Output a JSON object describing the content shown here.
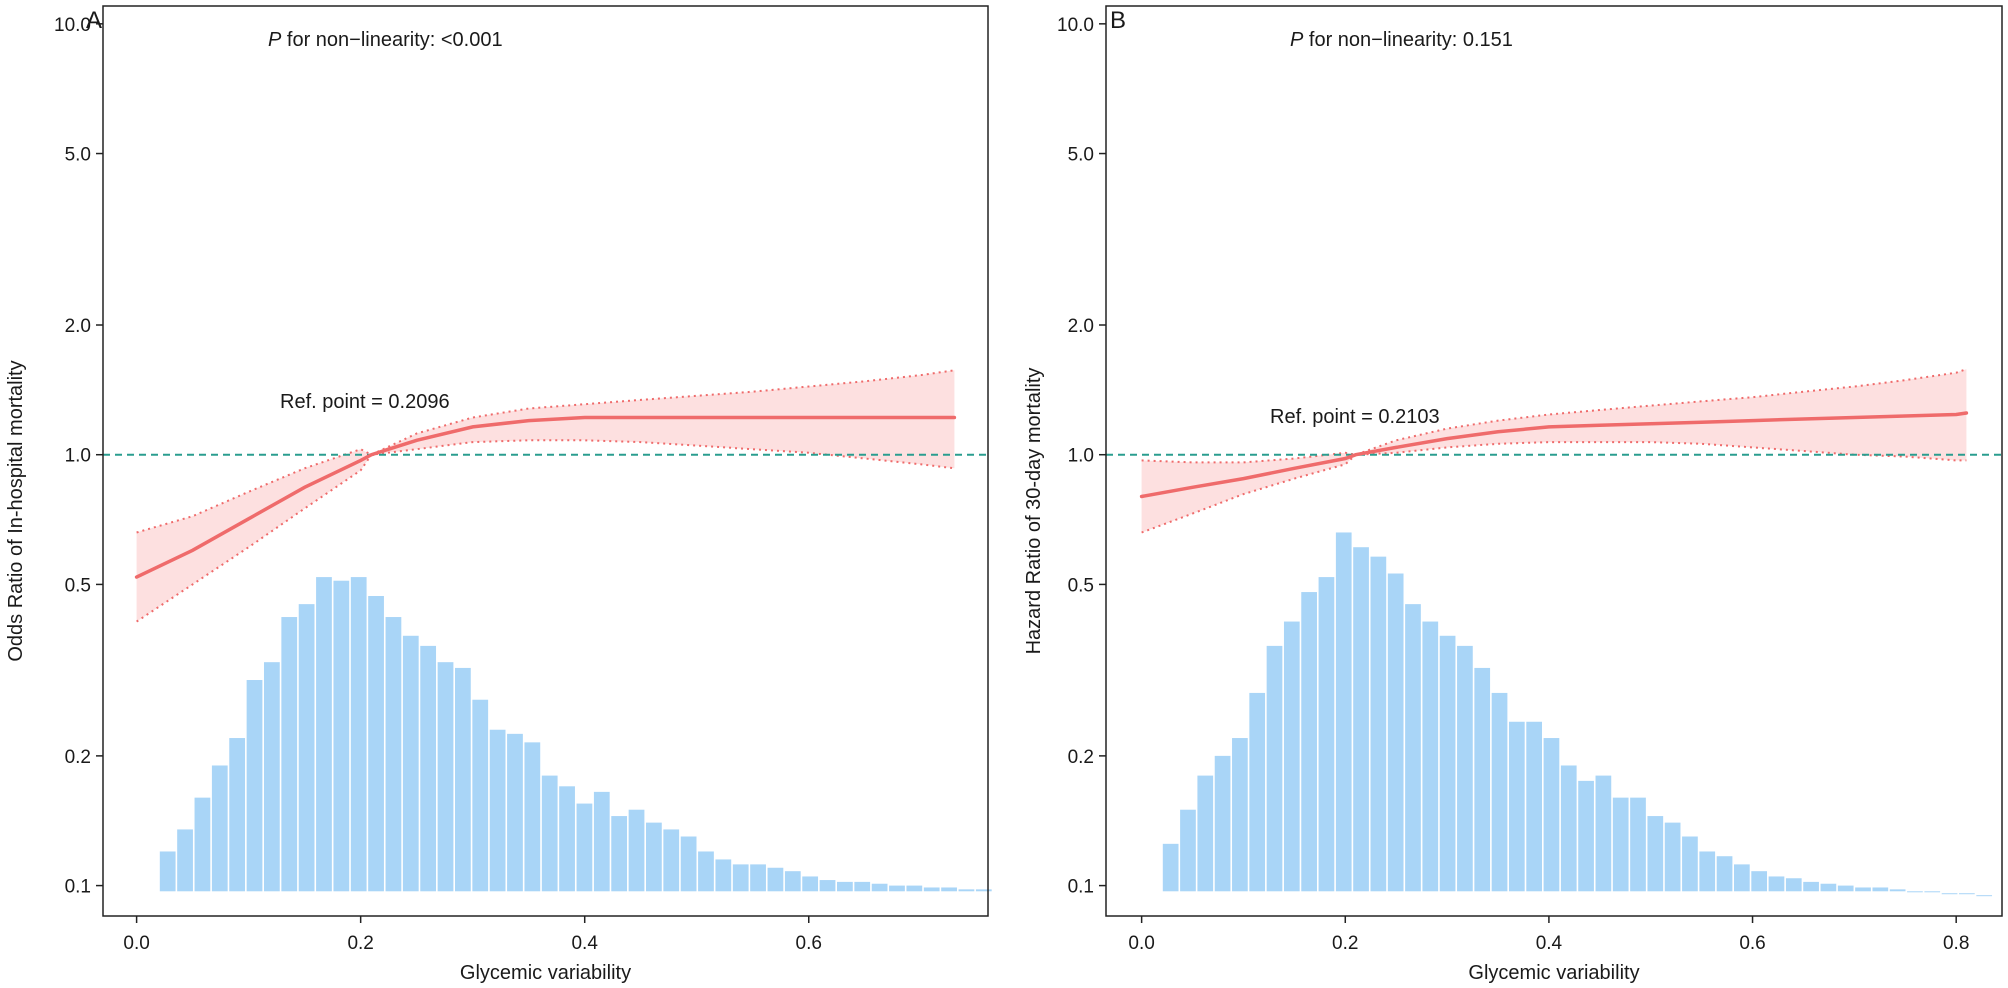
{
  "chart_data": [
    {
      "panel": "A",
      "type": "line",
      "x_label": "Glycemic variability",
      "y_label": "Odds Ratio of In-hospital mortality",
      "y_scale": "log",
      "ylim": [
        0.085,
        11
      ],
      "xlim": [
        -0.03,
        0.76
      ],
      "x_ticks": [
        "0.0",
        "0.2",
        "0.4",
        "0.6"
      ],
      "x_tick_values": [
        0.0,
        0.2,
        0.4,
        0.6
      ],
      "y_ticks": [
        "0.1",
        "0.2",
        "0.5",
        "1.0",
        "2.0",
        "5.0",
        "10.0"
      ],
      "y_tick_values": [
        0.1,
        0.2,
        0.5,
        1.0,
        2.0,
        5.0,
        10.0
      ],
      "nonlinearity_p_symbol": "P",
      "nonlinearity_text": " for non−linearity: <0.001",
      "ref_text": "Ref. point = 0.2096",
      "ref_value": 0.2096,
      "reference_line_y": 1.0,
      "colors": {
        "line": "#ef6b6b",
        "ci_fill": "#fde0e0",
        "hist": "#a9d5f7",
        "refline": "#2a9d8f"
      },
      "curve": {
        "x": [
          0.0,
          0.05,
          0.1,
          0.15,
          0.2,
          0.2096,
          0.25,
          0.3,
          0.35,
          0.4,
          0.45,
          0.5,
          0.55,
          0.6,
          0.65,
          0.7,
          0.73
        ],
        "y": [
          0.52,
          0.6,
          0.71,
          0.84,
          0.97,
          1.0,
          1.08,
          1.16,
          1.2,
          1.22,
          1.22,
          1.22,
          1.22,
          1.22,
          1.22,
          1.22,
          1.22
        ],
        "lo": [
          0.41,
          0.5,
          0.61,
          0.75,
          0.92,
          1.0,
          1.03,
          1.07,
          1.08,
          1.08,
          1.07,
          1.05,
          1.03,
          1.01,
          0.98,
          0.95,
          0.93
        ],
        "hi": [
          0.66,
          0.72,
          0.82,
          0.93,
          1.03,
          1.0,
          1.12,
          1.22,
          1.28,
          1.31,
          1.34,
          1.37,
          1.4,
          1.44,
          1.48,
          1.53,
          1.57
        ]
      },
      "histogram": {
        "x_start": 0.02,
        "bin_width": 0.0155,
        "heights": [
          0.12,
          0.135,
          0.16,
          0.19,
          0.22,
          0.3,
          0.33,
          0.42,
          0.45,
          0.52,
          0.51,
          0.52,
          0.47,
          0.42,
          0.38,
          0.36,
          0.33,
          0.32,
          0.27,
          0.23,
          0.225,
          0.215,
          0.18,
          0.17,
          0.155,
          0.165,
          0.145,
          0.15,
          0.14,
          0.135,
          0.13,
          0.12,
          0.115,
          0.112,
          0.112,
          0.11,
          0.108,
          0.105,
          0.103,
          0.102,
          0.102,
          0.101,
          0.1,
          0.1,
          0.099,
          0.099,
          0.098,
          0.098
        ]
      }
    },
    {
      "panel": "B",
      "type": "line",
      "x_label": "Glycemic variability",
      "y_label": "Hazard Ratio of 30-day mortality",
      "y_scale": "log",
      "ylim": [
        0.085,
        11
      ],
      "xlim": [
        -0.035,
        0.845
      ],
      "x_ticks": [
        "0.0",
        "0.2",
        "0.4",
        "0.6",
        "0.8"
      ],
      "x_tick_values": [
        0.0,
        0.2,
        0.4,
        0.6,
        0.8
      ],
      "y_ticks": [
        "0.1",
        "0.2",
        "0.5",
        "1.0",
        "2.0",
        "5.0",
        "10.0"
      ],
      "y_tick_values": [
        0.1,
        0.2,
        0.5,
        1.0,
        2.0,
        5.0,
        10.0
      ],
      "nonlinearity_p_symbol": "P",
      "nonlinearity_text": " for non−linearity: 0.151",
      "ref_text": "Ref. point = 0.2103",
      "ref_value": 0.2103,
      "reference_line_y": 1.0,
      "colors": {
        "line": "#ef6b6b",
        "ci_fill": "#fde0e0",
        "hist": "#a9d5f7",
        "refline": "#2a9d8f"
      },
      "curve": {
        "x": [
          0.0,
          0.05,
          0.1,
          0.15,
          0.2,
          0.2103,
          0.25,
          0.3,
          0.35,
          0.4,
          0.45,
          0.5,
          0.55,
          0.6,
          0.65,
          0.7,
          0.75,
          0.8,
          0.81
        ],
        "y": [
          0.8,
          0.84,
          0.88,
          0.93,
          0.98,
          1.0,
          1.04,
          1.09,
          1.13,
          1.16,
          1.17,
          1.18,
          1.19,
          1.2,
          1.21,
          1.22,
          1.23,
          1.24,
          1.25
        ],
        "lo": [
          0.66,
          0.73,
          0.81,
          0.88,
          0.95,
          1.0,
          1.01,
          1.04,
          1.06,
          1.07,
          1.07,
          1.07,
          1.06,
          1.04,
          1.02,
          1.0,
          0.99,
          0.97,
          0.97
        ],
        "hi": [
          0.97,
          0.96,
          0.96,
          0.98,
          1.01,
          1.0,
          1.08,
          1.15,
          1.2,
          1.24,
          1.27,
          1.3,
          1.33,
          1.36,
          1.4,
          1.44,
          1.49,
          1.55,
          1.58
        ]
      },
      "histogram": {
        "x_start": 0.02,
        "bin_width": 0.017,
        "heights": [
          0.125,
          0.15,
          0.18,
          0.2,
          0.22,
          0.28,
          0.36,
          0.41,
          0.48,
          0.52,
          0.66,
          0.61,
          0.58,
          0.53,
          0.45,
          0.41,
          0.38,
          0.36,
          0.32,
          0.28,
          0.24,
          0.24,
          0.22,
          0.19,
          0.175,
          0.18,
          0.16,
          0.16,
          0.145,
          0.14,
          0.13,
          0.12,
          0.117,
          0.112,
          0.108,
          0.105,
          0.104,
          0.102,
          0.101,
          0.1,
          0.099,
          0.099,
          0.098,
          0.097,
          0.097,
          0.096,
          0.096,
          0.095
        ]
      }
    }
  ]
}
